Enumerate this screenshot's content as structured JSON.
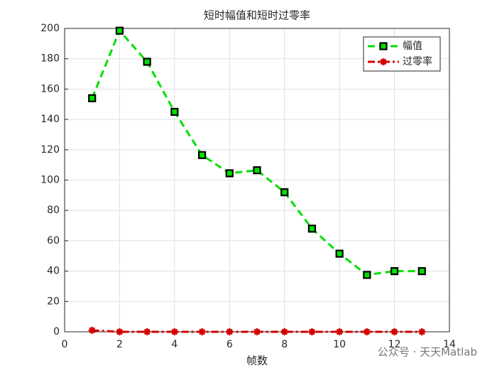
{
  "chart_data": {
    "type": "line",
    "title": "短时幅值和短时过零率",
    "xlabel": "帧数",
    "x": [
      1,
      2,
      3,
      4,
      5,
      6,
      7,
      8,
      9,
      10,
      11,
      12,
      13
    ],
    "series": [
      {
        "name": "幅值",
        "color": "#00e000",
        "marker_color": "#000000",
        "values": [
          154,
          198.5,
          178,
          145,
          116.5,
          104.5,
          106.5,
          92,
          68,
          51.5,
          37.5,
          40,
          40
        ]
      },
      {
        "name": "过零率",
        "color": "#d40000",
        "values": [
          1,
          0,
          0,
          0,
          0,
          0,
          0,
          0,
          0,
          0,
          0,
          0,
          0
        ]
      }
    ],
    "xlim": [
      0,
      14
    ],
    "xticks": [
      0,
      2,
      4,
      6,
      8,
      10,
      12,
      14
    ],
    "ylim": [
      0,
      200
    ],
    "yticks": [
      0,
      20,
      40,
      60,
      80,
      100,
      120,
      140,
      160,
      180,
      200
    ],
    "grid": true,
    "legend": "upper right",
    "annotation": "公众号 · 天天Matlab"
  }
}
